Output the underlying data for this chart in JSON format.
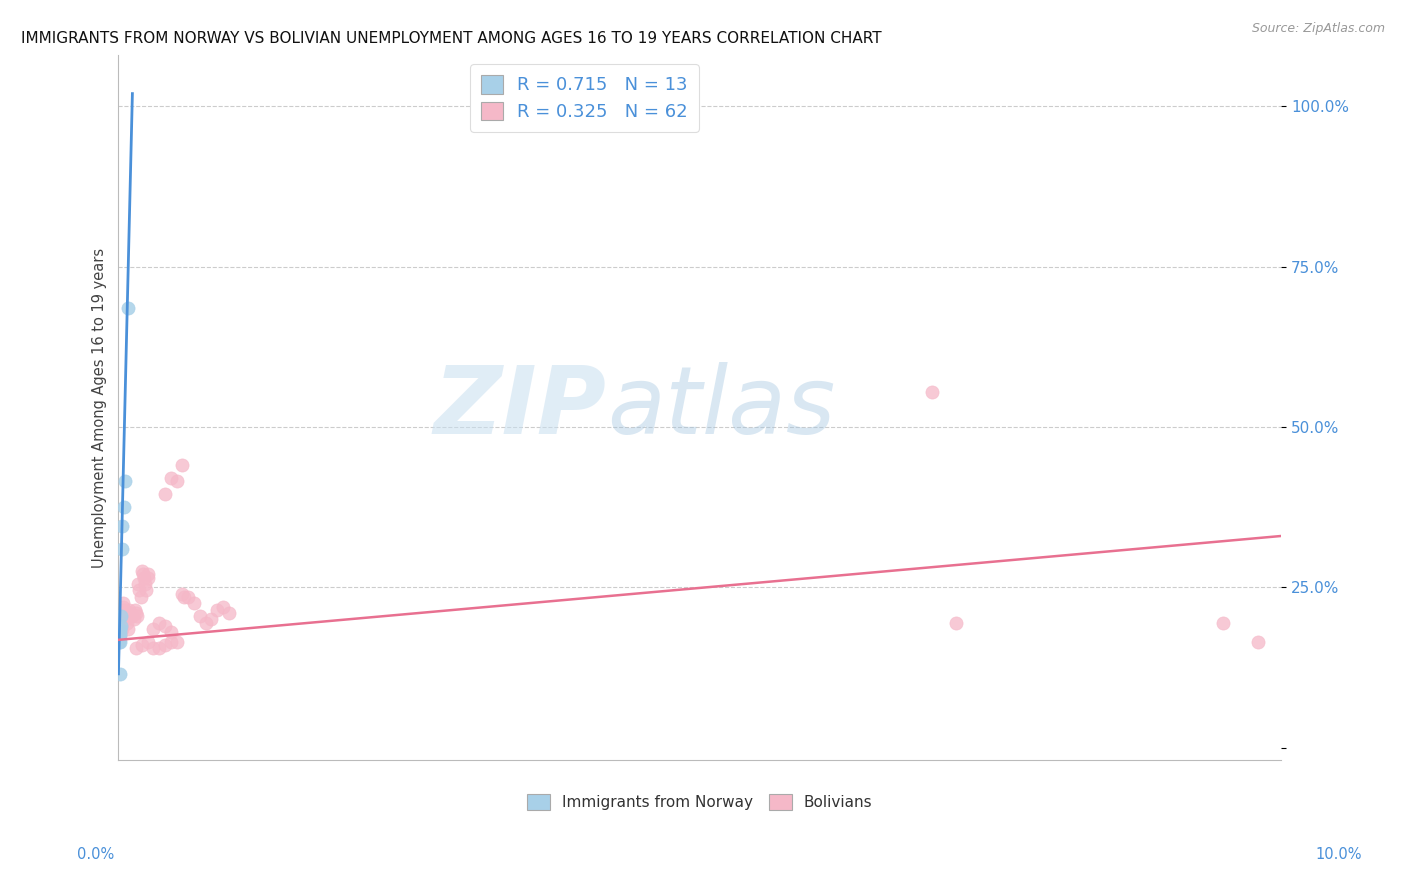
{
  "title": "IMMIGRANTS FROM NORWAY VS BOLIVIAN UNEMPLOYMENT AMONG AGES 16 TO 19 YEARS CORRELATION CHART",
  "source": "Source: ZipAtlas.com",
  "ylabel": "Unemployment Among Ages 16 to 19 years",
  "xlim": [
    0.0,
    0.1
  ],
  "ylim": [
    -0.02,
    1.08
  ],
  "norway_R": 0.715,
  "norway_N": 13,
  "bolivia_R": 0.325,
  "bolivia_N": 62,
  "norway_color": "#A8D0E8",
  "bolivia_color": "#F5B8C8",
  "norway_line_color": "#4A90D9",
  "bolivia_line_color": "#E87090",
  "norway_scatter": [
    [
      0.0008,
      0.685
    ],
    [
      0.0006,
      0.415
    ],
    [
      0.0005,
      0.375
    ],
    [
      0.0003,
      0.345
    ],
    [
      0.0003,
      0.31
    ],
    [
      0.0002,
      0.205
    ],
    [
      0.0002,
      0.19
    ],
    [
      0.00015,
      0.185
    ],
    [
      0.00015,
      0.175
    ],
    [
      0.0001,
      0.18
    ],
    [
      0.0001,
      0.165
    ],
    [
      5e-05,
      0.165
    ],
    [
      0.00015,
      0.115
    ]
  ],
  "bolivia_scatter": [
    [
      5e-05,
      0.175
    ],
    [
      0.0001,
      0.185
    ],
    [
      0.00015,
      0.175
    ],
    [
      0.00015,
      0.17
    ],
    [
      0.0002,
      0.195
    ],
    [
      0.00025,
      0.19
    ],
    [
      0.0003,
      0.185
    ],
    [
      0.00035,
      0.22
    ],
    [
      0.0004,
      0.225
    ],
    [
      0.00045,
      0.215
    ],
    [
      0.0005,
      0.205
    ],
    [
      0.0006,
      0.2
    ],
    [
      0.0007,
      0.195
    ],
    [
      0.0008,
      0.185
    ],
    [
      0.0009,
      0.215
    ],
    [
      0.001,
      0.21
    ],
    [
      0.001,
      0.205
    ],
    [
      0.0012,
      0.205
    ],
    [
      0.0013,
      0.2
    ],
    [
      0.0014,
      0.215
    ],
    [
      0.0015,
      0.21
    ],
    [
      0.0016,
      0.205
    ],
    [
      0.0017,
      0.255
    ],
    [
      0.0018,
      0.245
    ],
    [
      0.0019,
      0.235
    ],
    [
      0.002,
      0.275
    ],
    [
      0.0021,
      0.27
    ],
    [
      0.0022,
      0.265
    ],
    [
      0.0023,
      0.255
    ],
    [
      0.0024,
      0.245
    ],
    [
      0.0025,
      0.27
    ],
    [
      0.0025,
      0.265
    ],
    [
      0.0015,
      0.155
    ],
    [
      0.002,
      0.16
    ],
    [
      0.0025,
      0.165
    ],
    [
      0.003,
      0.155
    ],
    [
      0.0035,
      0.155
    ],
    [
      0.004,
      0.16
    ],
    [
      0.0045,
      0.165
    ],
    [
      0.005,
      0.165
    ],
    [
      0.003,
      0.185
    ],
    [
      0.0035,
      0.195
    ],
    [
      0.004,
      0.19
    ],
    [
      0.0045,
      0.18
    ],
    [
      0.0055,
      0.24
    ],
    [
      0.0056,
      0.235
    ],
    [
      0.006,
      0.235
    ],
    [
      0.0065,
      0.225
    ],
    [
      0.004,
      0.395
    ],
    [
      0.0045,
      0.42
    ],
    [
      0.005,
      0.415
    ],
    [
      0.0055,
      0.44
    ],
    [
      0.007,
      0.205
    ],
    [
      0.0075,
      0.195
    ],
    [
      0.008,
      0.2
    ],
    [
      0.0085,
      0.215
    ],
    [
      0.009,
      0.22
    ],
    [
      0.0095,
      0.21
    ],
    [
      0.07,
      0.555
    ],
    [
      0.072,
      0.195
    ],
    [
      0.095,
      0.195
    ],
    [
      0.098,
      0.165
    ]
  ],
  "norway_trend_x": [
    0.0,
    0.0012
  ],
  "norway_trend_y": [
    0.115,
    1.02
  ],
  "bolivia_trend_x": [
    0.0,
    0.1
  ],
  "bolivia_trend_y": [
    0.168,
    0.33
  ],
  "background_color": "#FFFFFF",
  "grid_color": "#CCCCCC",
  "watermark_zip": "ZIP",
  "watermark_atlas": "atlas",
  "yticks": [
    0.0,
    0.25,
    0.5,
    0.75,
    1.0
  ],
  "ytick_labels": [
    "",
    "25.0%",
    "50.0%",
    "75.0%",
    "100.0%"
  ]
}
